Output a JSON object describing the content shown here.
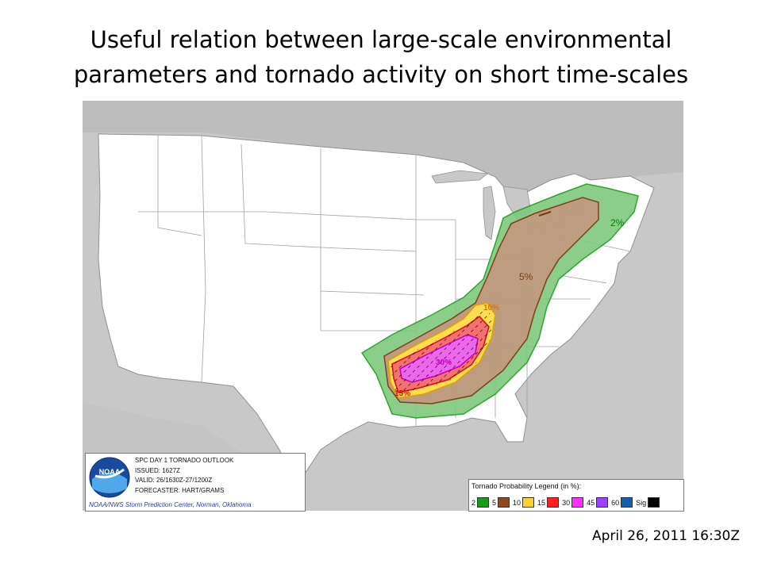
{
  "slide": {
    "title_line1": "Useful relation between large-scale environmental",
    "title_line2": "parameters and tornado activity on short time-scales",
    "date": "April 26, 2011 16:30Z"
  },
  "outlook": {
    "title": "SPC DAY 1 TORNADO OUTLOOK",
    "issued": "ISSUED: 1627Z",
    "valid": "VALID: 26/1630Z-27/1200Z",
    "forecaster": "FORECASTER: HART/GRAMS",
    "credit": "NOAA/NWS Storm Prediction Center, Norman, Oklahoma",
    "logo_text": "NOAA"
  },
  "map": {
    "contour_labels": [
      {
        "text": "2%",
        "color": "#0a7a0a"
      },
      {
        "text": "5%",
        "color": "#7a3b10"
      },
      {
        "text": "10%",
        "color": "#d07a00"
      },
      {
        "text": "15%",
        "color": "#d01010"
      },
      {
        "text": "30%",
        "color": "#c000c0"
      }
    ],
    "colors": {
      "ocean": "#c8c8c8",
      "land": "#ffffff",
      "border": "#9a9a9a"
    }
  },
  "legend": {
    "title": "Tornado Probability Legend (in %):",
    "items": [
      {
        "label": "2",
        "color": "#1a9a1a"
      },
      {
        "label": "5",
        "color": "#8b4a20"
      },
      {
        "label": "10",
        "color": "#ffd030"
      },
      {
        "label": "15",
        "color": "#ff2020"
      },
      {
        "label": "30",
        "color": "#ff30ff"
      },
      {
        "label": "45",
        "color": "#a040ff"
      },
      {
        "label": "60",
        "color": "#1060b0"
      },
      {
        "label": "Sig",
        "color": "#000000"
      }
    ]
  }
}
